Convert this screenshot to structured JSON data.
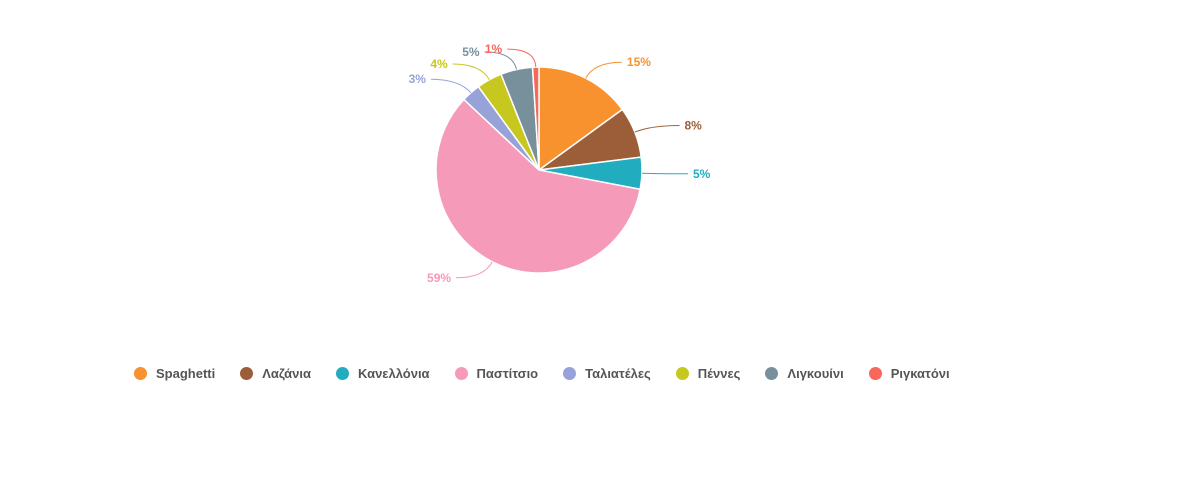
{
  "chart_data": {
    "type": "pie",
    "title": "",
    "legend_position": "bottom",
    "slices": [
      {
        "name": "Spaghetti",
        "value": 15,
        "label": "15%",
        "color": "#f7922e"
      },
      {
        "name": "Λαζάνια",
        "value": 8,
        "label": "8%",
        "color": "#9b5e38"
      },
      {
        "name": "Κανελλόνια",
        "value": 5,
        "label": "5%",
        "color": "#22acbf"
      },
      {
        "name": "Παστίτσιο",
        "value": 59,
        "label": "59%",
        "color": "#f59ab9"
      },
      {
        "name": "Ταλιατέλες",
        "value": 3,
        "label": "3%",
        "color": "#97a3d8"
      },
      {
        "name": "Πέννες",
        "value": 4,
        "label": "4%",
        "color": "#c6c81f"
      },
      {
        "name": "Λιγκουίνι",
        "value": 5,
        "label": "5%",
        "color": "#78909c"
      },
      {
        "name": "Ριγκατόνι",
        "value": 1,
        "label": "1%",
        "color": "#f7675b"
      }
    ]
  }
}
